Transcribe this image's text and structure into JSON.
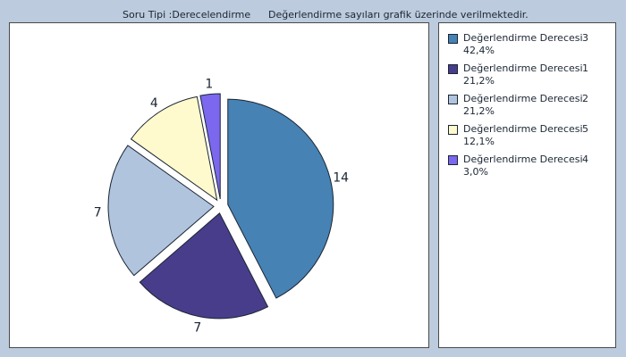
{
  "header": {
    "question_type": "Soru Tipi :Derecelendirme",
    "note": "Değerlendirme sayıları grafik üzerinde verilmektedir."
  },
  "colors": {
    "background": "#bccbdd",
    "slice_1": "#4682b4",
    "slice_2": "#483d8b",
    "slice_3": "#b0c4de",
    "slice_4": "#fffacd",
    "slice_5": "#7b68ee"
  },
  "chart_data": {
    "type": "pie",
    "values": [
      14,
      7,
      7,
      4,
      1
    ],
    "data_labels": [
      "14",
      "7",
      "7",
      "4",
      "1"
    ],
    "legend_placement": "right",
    "legend": [
      {
        "label": "Değerlendirme Derecesi",
        "rank": "3",
        "percent": "42,4%",
        "color": "#4682b4"
      },
      {
        "label": "Değerlendirme Derecesi",
        "rank": "1",
        "percent": "21,2%",
        "color": "#483d8b"
      },
      {
        "label": "Değerlendirme Derecesi",
        "rank": "2",
        "percent": "21,2%",
        "color": "#b0c4de"
      },
      {
        "label": "Değerlendirme Derecesi",
        "rank": "5",
        "percent": "12,1%",
        "color": "#fffacd"
      },
      {
        "label": "Değerlendirme Derecesi",
        "rank": "4",
        "percent": "3,0%",
        "color": "#7b68ee"
      }
    ]
  }
}
